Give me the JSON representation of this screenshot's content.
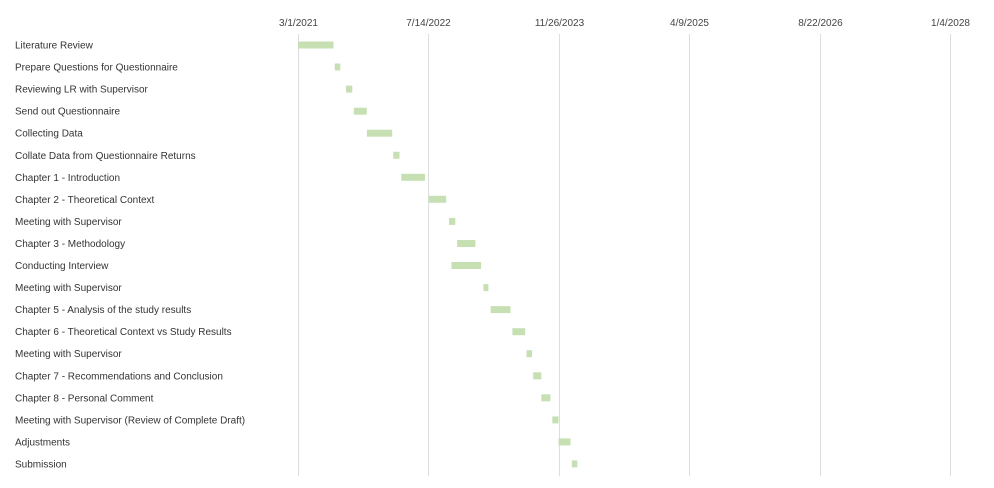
{
  "chart_data": {
    "type": "gantt",
    "title": "",
    "xlabel": "",
    "ylabel": "",
    "x_axis": {
      "scale": "date",
      "ticks": [
        "3/1/2021",
        "7/14/2022",
        "11/26/2023",
        "4/9/2025",
        "8/22/2026",
        "1/4/2028"
      ],
      "range": [
        "3/1/2021",
        "1/4/2028"
      ],
      "position": "top"
    },
    "grid": true,
    "bar_color": "#c6e0b4",
    "gridline_color": "#dddddd",
    "tasks": [
      {
        "label": "Literature Review",
        "start": "3/1/2021",
        "end": "7/15/2021"
      },
      {
        "label": "Prepare Questions for Questionnaire",
        "start": "7/20/2021",
        "end": "8/10/2021"
      },
      {
        "label": "Reviewing LR with Supervisor",
        "start": "9/1/2021",
        "end": "9/25/2021"
      },
      {
        "label": "Send out Questionnaire",
        "start": "10/1/2021",
        "end": "11/20/2021"
      },
      {
        "label": "Collecting Data",
        "start": "11/20/2021",
        "end": "2/25/2022"
      },
      {
        "label": "Collate Data from Questionnaire Returns",
        "start": "3/1/2022",
        "end": "3/25/2022"
      },
      {
        "label": "Chapter 1 - Introduction",
        "start": "4/1/2022",
        "end": "7/1/2022"
      },
      {
        "label": "Chapter 2 - Theoretical Context",
        "start": "7/15/2022",
        "end": "9/20/2022"
      },
      {
        "label": "Meeting with Supervisor",
        "start": "10/1/2022",
        "end": "10/25/2022"
      },
      {
        "label": "Chapter 3 - Methodology",
        "start": "11/1/2022",
        "end": "1/10/2023"
      },
      {
        "label": "Conducting Interview",
        "start": "10/10/2022",
        "end": "2/1/2023"
      },
      {
        "label": "Meeting with Supervisor",
        "start": "2/10/2023",
        "end": "3/1/2023"
      },
      {
        "label": "Chapter 5 - Analysis of the study results",
        "start": "3/10/2023",
        "end": "5/25/2023"
      },
      {
        "label": "Chapter 6 - Theoretical Context vs Study Results",
        "start": "6/1/2023",
        "end": "7/20/2023"
      },
      {
        "label": "Meeting with Supervisor",
        "start": "7/25/2023",
        "end": "8/15/2023"
      },
      {
        "label": "Chapter 7 - Recommendations and Conclusion",
        "start": "8/20/2023",
        "end": "9/20/2023"
      },
      {
        "label": "Chapter 8 - Personal Comment",
        "start": "9/20/2023",
        "end": "10/25/2023"
      },
      {
        "label": "Meeting with Supervisor (Review of Complete Draft)",
        "start": "11/1/2023",
        "end": "11/25/2023"
      },
      {
        "label": "Adjustments",
        "start": "11/25/2023",
        "end": "1/10/2024"
      },
      {
        "label": "Submission",
        "start": "1/15/2024",
        "end": "2/5/2024"
      }
    ]
  }
}
